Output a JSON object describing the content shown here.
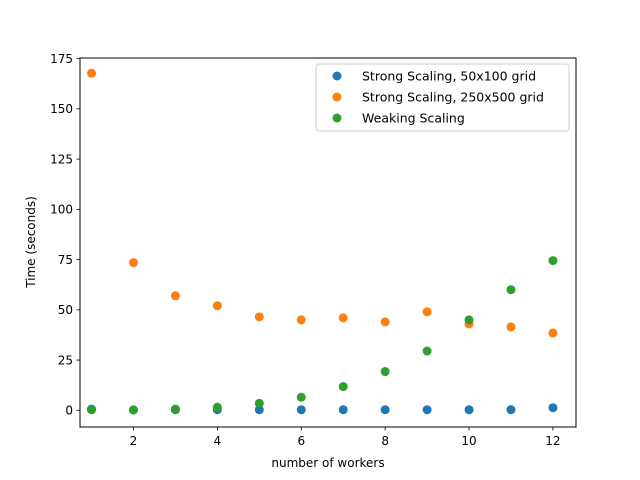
{
  "chart_data": {
    "type": "scatter",
    "title": "",
    "xlabel": "number of workers",
    "ylabel": "Time (seconds)",
    "xlim": [
      0.725,
      12.55
    ],
    "ylim": [
      -8.3,
      175.3
    ],
    "xticks": [
      2,
      4,
      6,
      8,
      10,
      12
    ],
    "yticks": [
      0,
      25,
      50,
      75,
      100,
      125,
      150,
      175
    ],
    "grid": false,
    "legend_position": "top-right",
    "series": [
      {
        "name": "Strong Scaling, 50x100 grid",
        "color": "#1f77b4",
        "x": [
          1,
          2,
          3,
          4,
          5,
          6,
          7,
          8,
          9,
          10,
          11,
          12
        ],
        "y": [
          0.6,
          0.2,
          0.3,
          0.3,
          0.3,
          0.3,
          0.3,
          0.3,
          0.3,
          0.3,
          0.3,
          1.3
        ]
      },
      {
        "name": "Strong Scaling, 250x500 grid",
        "color": "#ff7f0e",
        "x": [
          1,
          2,
          3,
          4,
          5,
          6,
          7,
          8,
          9,
          10,
          11,
          12
        ],
        "y": [
          167.7,
          73.5,
          57.0,
          52.0,
          46.5,
          45.0,
          46.0,
          44.0,
          49.0,
          43.0,
          41.5,
          38.5
        ]
      },
      {
        "name": "Weaking Scaling",
        "color": "#2ca02c",
        "x": [
          1,
          2,
          3,
          4,
          5,
          6,
          7,
          8,
          9,
          10,
          11,
          12
        ],
        "y": [
          0.3,
          0.2,
          0.6,
          1.5,
          3.5,
          6.5,
          11.8,
          19.3,
          29.5,
          45.0,
          60.0,
          74.5
        ]
      }
    ]
  }
}
